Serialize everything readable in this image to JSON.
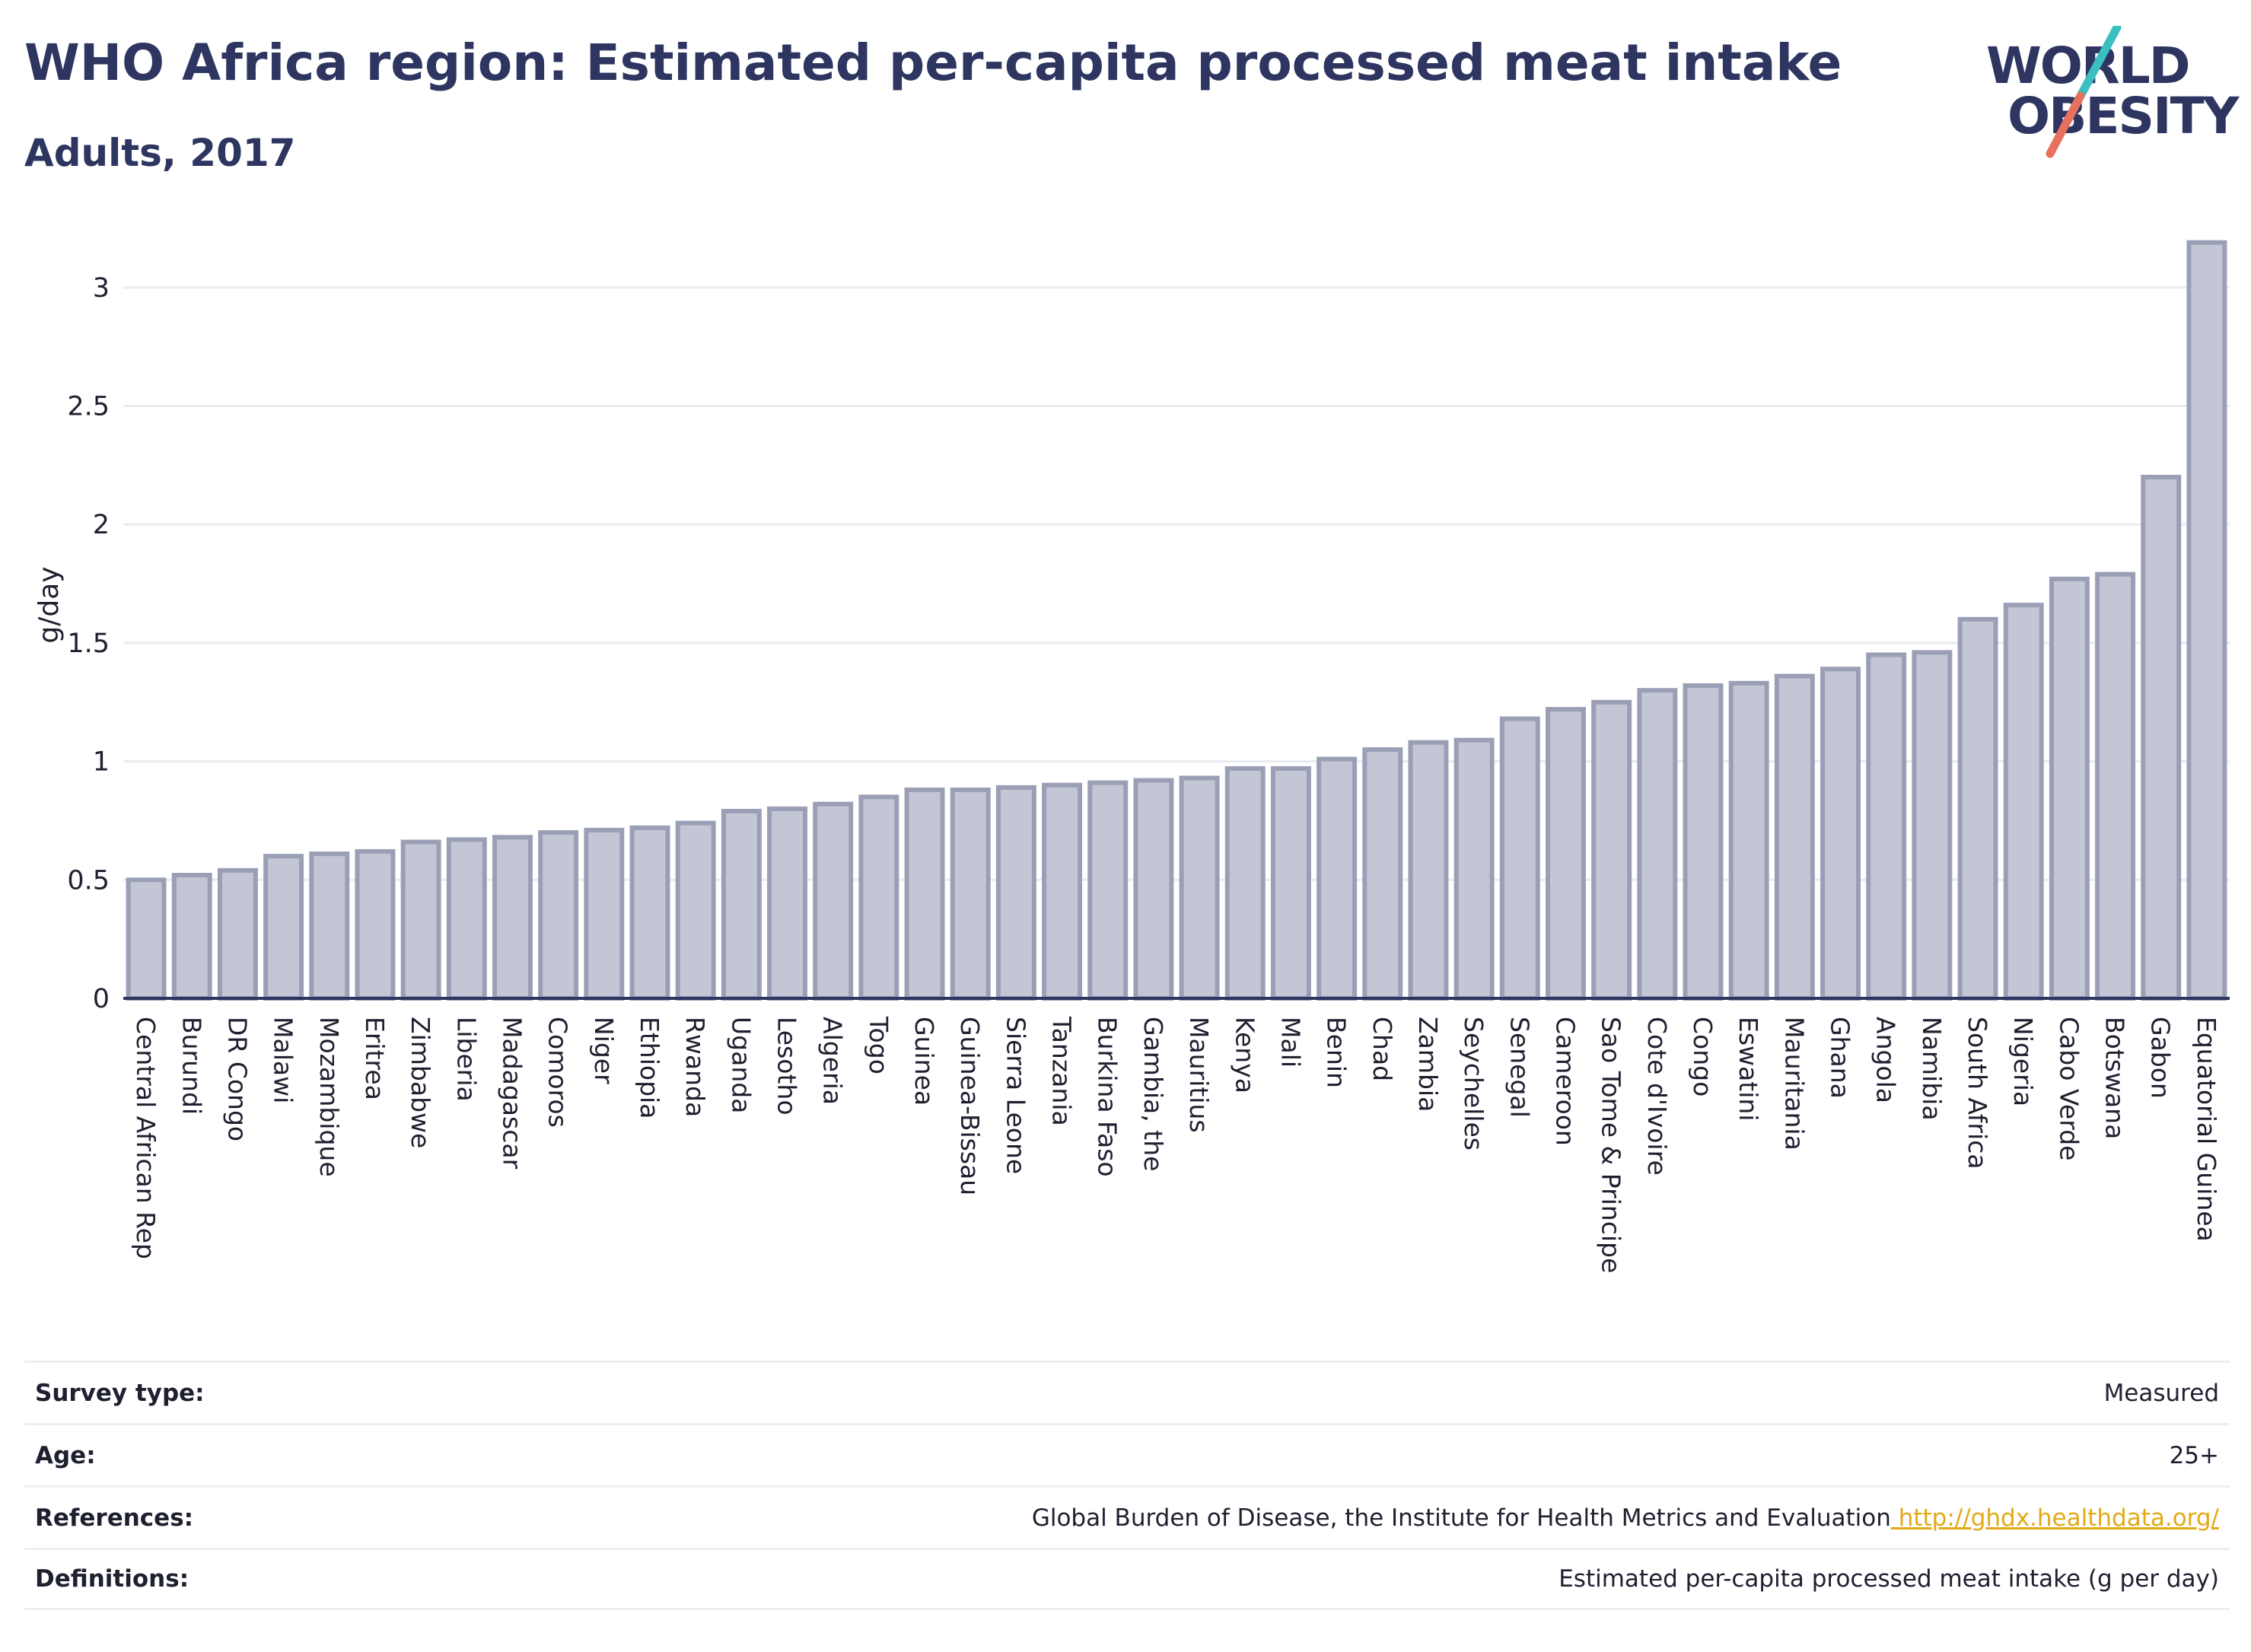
{
  "header": {
    "title": "WHO Africa region: Estimated per-capita processed meat intake",
    "subtitle": "Adults, 2017"
  },
  "logo": {
    "line1": "WORLD",
    "line2": "OBESITY",
    "colors": {
      "text": "#2d3560",
      "slash_top": "#3bbfc1",
      "slash_bottom": "#e8705f"
    }
  },
  "chart_data": {
    "type": "bar",
    "title": "",
    "xlabel": "",
    "ylabel": "g/day",
    "ylim": [
      0,
      3.25
    ],
    "yticks": [
      0,
      0.5,
      1,
      1.5,
      2,
      2.5,
      3
    ],
    "grid": true,
    "bar_color": "#c3c6d4",
    "bar_edge_color": "#9a9fb6",
    "categories": [
      "Central African Rep",
      "Burundi",
      "DR Congo",
      "Malawi",
      "Mozambique",
      "Eritrea",
      "Zimbabwe",
      "Liberia",
      "Madagascar",
      "Comoros",
      "Niger",
      "Ethiopia",
      "Rwanda",
      "Uganda",
      "Lesotho",
      "Algeria",
      "Togo",
      "Guinea",
      "Guinea-Bissau",
      "Sierra Leone",
      "Tanzania",
      "Burkina Faso",
      "Gambia, the",
      "Mauritius",
      "Kenya",
      "Mali",
      "Benin",
      "Chad",
      "Zambia",
      "Seychelles",
      "Senegal",
      "Cameroon",
      "Sao Tome & Principe",
      "Cote d'Ivoire",
      "Congo",
      "Eswatini",
      "Mauritania",
      "Ghana",
      "Angola",
      "Namibia",
      "South Africa",
      "Nigeria",
      "Cabo Verde",
      "Botswana",
      "Gabon",
      "Equatorial Guinea"
    ],
    "values": [
      0.5,
      0.52,
      0.54,
      0.6,
      0.61,
      0.62,
      0.66,
      0.67,
      0.68,
      0.7,
      0.71,
      0.72,
      0.74,
      0.79,
      0.8,
      0.82,
      0.85,
      0.88,
      0.88,
      0.89,
      0.9,
      0.91,
      0.92,
      0.93,
      0.97,
      0.97,
      1.01,
      1.05,
      1.08,
      1.09,
      1.18,
      1.22,
      1.25,
      1.3,
      1.32,
      1.33,
      1.36,
      1.39,
      1.45,
      1.46,
      1.6,
      1.66,
      1.77,
      1.79,
      2.2,
      3.19
    ]
  },
  "meta": [
    {
      "label": "Survey type:",
      "value": "Measured"
    },
    {
      "label": "Age:",
      "value": "25+"
    },
    {
      "label": "References:",
      "value": "Global Burden of Disease, the Institute for Health Metrics and Evaluation",
      "link": "http://ghdx.healthdata.org/"
    },
    {
      "label": "Definitions:",
      "value": "Estimated per-capita processed meat intake (g per day)"
    }
  ]
}
